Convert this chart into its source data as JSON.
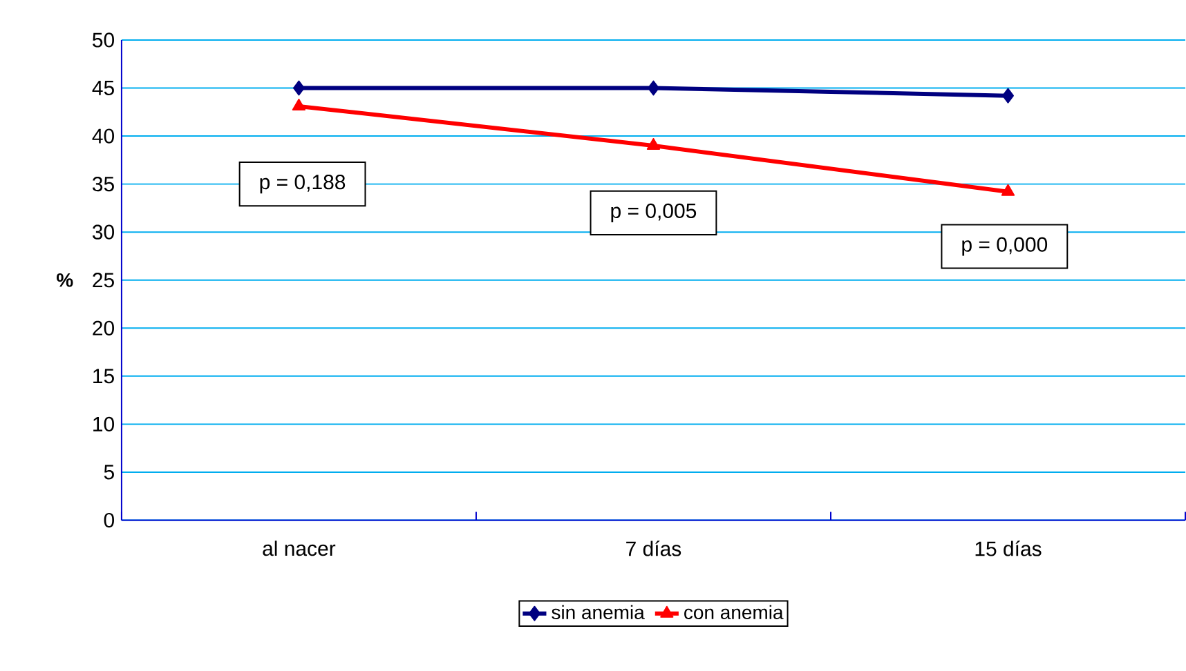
{
  "chart_data": {
    "type": "line",
    "ylabel": "%",
    "categories": [
      "al nacer",
      "7 días",
      "15 días"
    ],
    "series": [
      {
        "name": "sin anemia",
        "color": "#000080",
        "marker": "diamond",
        "values": [
          45,
          45,
          44.2
        ]
      },
      {
        "name": "con anemia",
        "color": "#ff0000",
        "marker": "triangle",
        "values": [
          43.1,
          39,
          34.2
        ]
      }
    ],
    "ylim": [
      0,
      50
    ],
    "yticks": [
      0,
      5,
      10,
      15,
      20,
      25,
      30,
      35,
      40,
      45,
      50
    ],
    "grid": "y",
    "legend": "bottom",
    "annotations": [
      "p = 0,188",
      "p =  0,005",
      "p = 0,000"
    ]
  }
}
